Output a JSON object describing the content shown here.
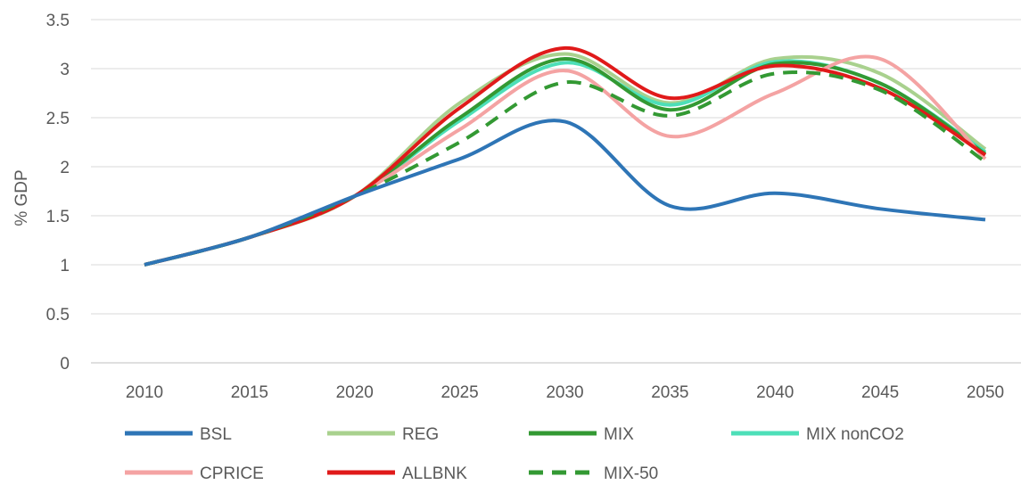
{
  "chart_data": {
    "type": "line",
    "title": "",
    "xlabel": "",
    "ylabel": "% GDP",
    "x": [
      2010,
      2015,
      2020,
      2025,
      2030,
      2035,
      2040,
      2045,
      2050
    ],
    "xticks": [
      "2010",
      "2015",
      "2020",
      "2025",
      "2030",
      "2035",
      "2040",
      "2045",
      "2050"
    ],
    "ylim": [
      0,
      3.5
    ],
    "yticks": [
      "0",
      "0.5",
      "1",
      "1.5",
      "2",
      "2.5",
      "3",
      "3.5"
    ],
    "grid": "horizontal",
    "legend_position": "bottom",
    "series": [
      {
        "name": "BSL",
        "color": "#2E75B6",
        "dash": false,
        "values": [
          1.0,
          1.28,
          1.7,
          2.08,
          2.46,
          1.6,
          1.73,
          1.57,
          1.46
        ]
      },
      {
        "name": "REG",
        "color": "#A9D18E",
        "dash": false,
        "values": [
          1.0,
          1.28,
          1.7,
          2.65,
          3.15,
          2.65,
          3.1,
          2.95,
          2.18
        ]
      },
      {
        "name": "MIX",
        "color": "#339933",
        "dash": false,
        "values": [
          1.0,
          1.28,
          1.7,
          2.5,
          3.1,
          2.58,
          3.05,
          2.85,
          2.13
        ]
      },
      {
        "name": "MIX nonCO2",
        "color": "#4DDFB8",
        "dash": false,
        "values": [
          1.0,
          1.28,
          1.7,
          2.47,
          3.06,
          2.63,
          3.07,
          2.85,
          2.15
        ]
      },
      {
        "name": "CPRICE",
        "color": "#F4A3A3",
        "dash": false,
        "values": [
          1.0,
          1.28,
          1.7,
          2.38,
          2.98,
          2.31,
          2.75,
          3.1,
          2.08
        ]
      },
      {
        "name": "ALLBNK",
        "color": "#E01A1A",
        "dash": false,
        "values": [
          1.0,
          1.28,
          1.7,
          2.6,
          3.21,
          2.7,
          3.03,
          2.8,
          2.12
        ]
      },
      {
        "name": "MIX-50",
        "color": "#339933",
        "dash": true,
        "values": [
          1.0,
          1.28,
          1.7,
          2.25,
          2.86,
          2.52,
          2.95,
          2.78,
          2.05
        ]
      }
    ]
  }
}
